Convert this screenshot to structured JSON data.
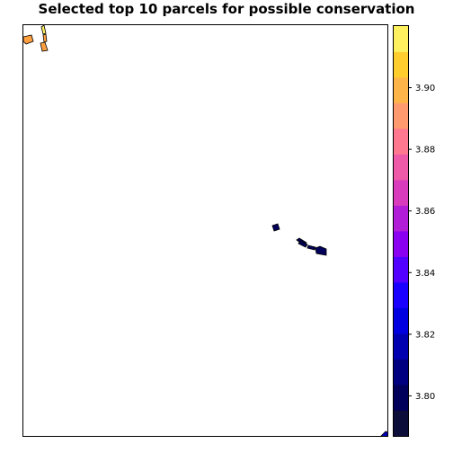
{
  "title": "Selected top 10 parcels for possible conservation",
  "legend": {
    "ticks": [
      {
        "value": 3.8,
        "label": "3.80"
      },
      {
        "value": 3.82,
        "label": "3.82"
      },
      {
        "value": 3.84,
        "label": "3.84"
      },
      {
        "value": 3.86,
        "label": "3.86"
      },
      {
        "value": 3.88,
        "label": "3.88"
      },
      {
        "value": 3.9,
        "label": "3.90"
      }
    ],
    "range": [
      3.787,
      3.92
    ],
    "colors": [
      "#0d0d3a",
      "#00005a",
      "#000080",
      "#0000b0",
      "#0000e0",
      "#1a00ff",
      "#5200ff",
      "#8a00f0",
      "#b21ed8",
      "#d83cbd",
      "#ef5aa8",
      "#ff7890",
      "#ff9a6e",
      "#ffb44a",
      "#ffce2e",
      "#fff060"
    ]
  },
  "parcels": [
    {
      "id": "p1",
      "value": 3.885,
      "color": "#ffa040"
    },
    {
      "id": "p2",
      "value": 3.885,
      "color": "#ffa040"
    },
    {
      "id": "p3",
      "value": 3.915,
      "color": "#fff060"
    },
    {
      "id": "p4",
      "value": 3.885,
      "color": "#ffa040"
    },
    {
      "id": "p5",
      "value": 3.795,
      "color": "#00005a"
    },
    {
      "id": "p6",
      "value": 3.795,
      "color": "#00005a"
    },
    {
      "id": "p7",
      "value": 3.795,
      "color": "#00005a"
    },
    {
      "id": "p8",
      "value": 3.795,
      "color": "#00005a"
    },
    {
      "id": "p9",
      "value": 3.795,
      "color": "#00005a"
    },
    {
      "id": "p10",
      "value": 3.81,
      "color": "#0000b0"
    }
  ]
}
